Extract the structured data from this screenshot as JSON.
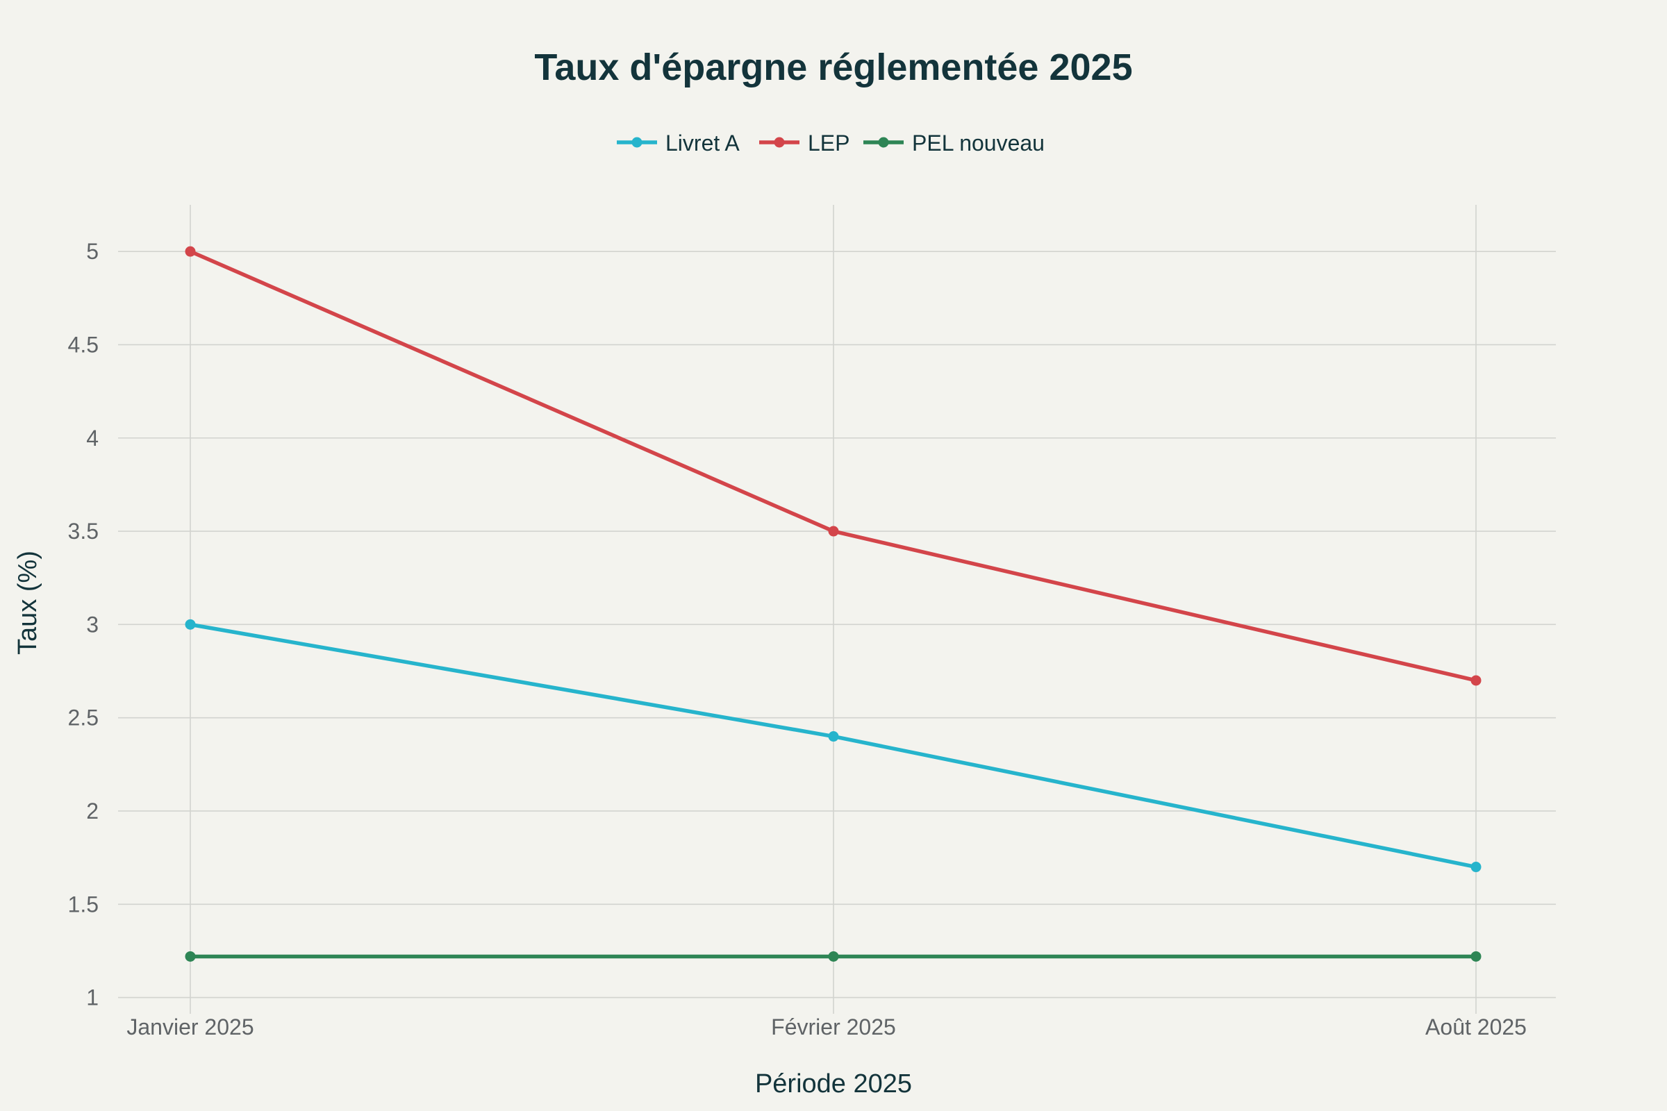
{
  "chart_data": {
    "type": "line",
    "title": "Taux d'épargne réglementée 2025",
    "xlabel": "Période 2025",
    "ylabel": "Taux (%)",
    "categories": [
      "Janvier 2025",
      "Février 2025",
      "Août 2025"
    ],
    "yticks": [
      "1",
      "1.5",
      "2",
      "2.5",
      "3",
      "3.5",
      "4",
      "4.5",
      "5"
    ],
    "ylim": [
      0.95,
      5.25
    ],
    "grid": true,
    "legend_position": "top-center",
    "series": [
      {
        "name": "Livret A",
        "color": "#26b4cc",
        "values": [
          3.0,
          2.4,
          1.7
        ]
      },
      {
        "name": "LEP",
        "color": "#d3454a",
        "values": [
          5.0,
          3.5,
          2.7
        ]
      },
      {
        "name": "PEL nouveau",
        "color": "#2e8555",
        "values": [
          1.22,
          1.22,
          1.22
        ]
      }
    ]
  }
}
